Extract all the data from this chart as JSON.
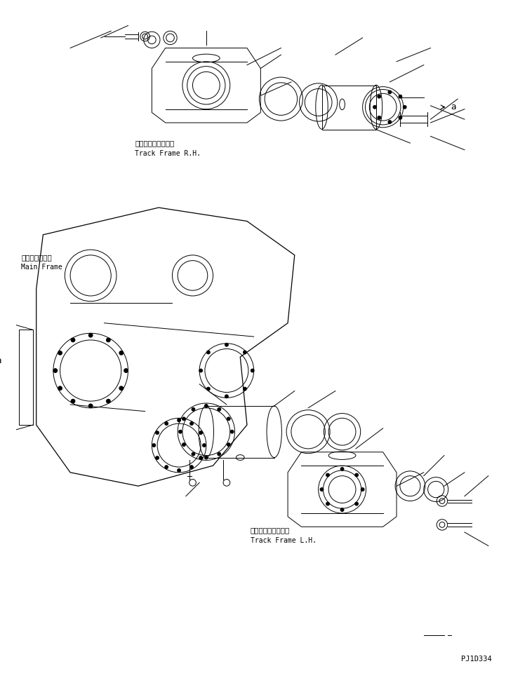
{
  "title": "",
  "background_color": "#ffffff",
  "line_color": "#000000",
  "label_track_frame_rh_jp": "トラックフレーム右",
  "label_track_frame_rh_en": "Track Frame R.H.",
  "label_main_frame_jp": "メインフレーム",
  "label_main_frame_en": "Main Frame",
  "label_track_frame_lh_jp": "トラックフレーム左",
  "label_track_frame_lh_en": "Track Frame L.H.",
  "label_part_code": "PJ1D334",
  "label_a": "a",
  "fig_width": 7.21,
  "fig_height": 9.67,
  "dpi": 100
}
